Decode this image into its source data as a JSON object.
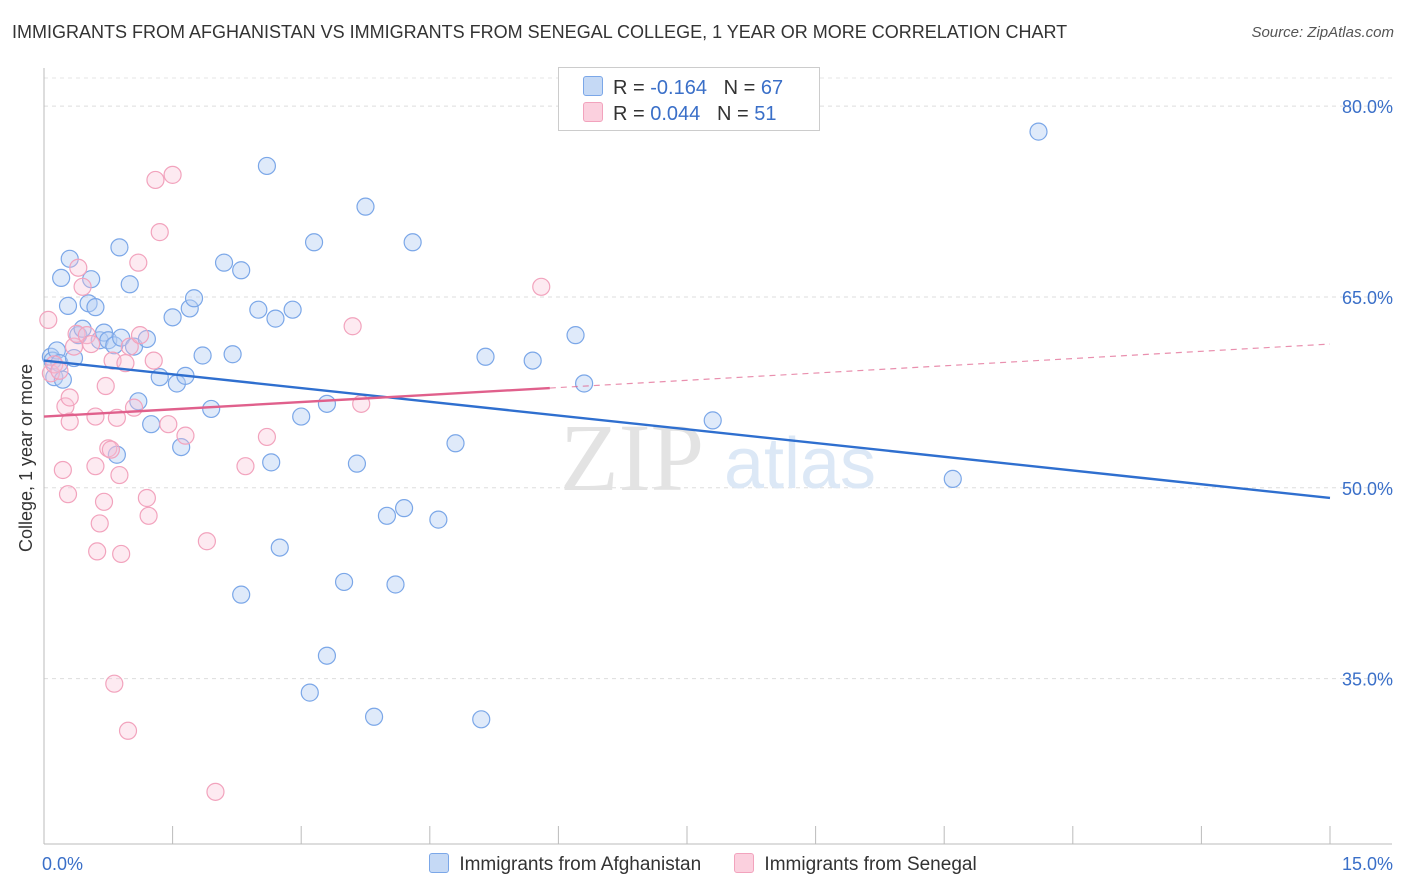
{
  "chart_data": {
    "type": "scatter",
    "title": "IMMIGRANTS FROM AFGHANISTAN VS IMMIGRANTS FROM SENEGAL COLLEGE, 1 YEAR OR MORE CORRELATION CHART",
    "source": "Source: ZipAtlas.com",
    "xlabel": "",
    "ylabel": "College, 1 year or more",
    "xlim": [
      0,
      15
    ],
    "ylim": [
      22,
      83
    ],
    "x_tick_labels": [
      "0.0%",
      "15.0%"
    ],
    "y_ticks": [
      35,
      50,
      65,
      80
    ],
    "y_tick_labels": [
      "35.0%",
      "50.0%",
      "65.0%",
      "80.0%"
    ],
    "watermark": {
      "zip": "ZIP",
      "atlas": "atlas"
    },
    "legend": {
      "r_label": "R =",
      "n_label": "N =",
      "rows": [
        {
          "r": "-0.164",
          "n": "67"
        },
        {
          "r": "0.044",
          "n": "51"
        }
      ]
    },
    "series": [
      {
        "name": "Immigrants from Afghanistan",
        "color": "#7ba7e8",
        "line_color": "#2f6fcf",
        "trend": {
          "x": [
            0,
            15
          ],
          "y": [
            60.0,
            49.2
          ],
          "solid_until": 15
        },
        "points": [
          [
            0.08,
            60.3
          ],
          [
            0.1,
            60.0
          ],
          [
            0.12,
            58.7
          ],
          [
            0.15,
            60.8
          ],
          [
            0.18,
            59.8
          ],
          [
            0.2,
            66.5
          ],
          [
            0.22,
            58.5
          ],
          [
            0.28,
            64.3
          ],
          [
            0.3,
            68.0
          ],
          [
            0.35,
            60.2
          ],
          [
            0.4,
            62.0
          ],
          [
            0.45,
            62.5
          ],
          [
            0.52,
            64.5
          ],
          [
            0.55,
            66.4
          ],
          [
            0.6,
            64.2
          ],
          [
            0.65,
            61.6
          ],
          [
            0.7,
            62.2
          ],
          [
            0.75,
            61.6
          ],
          [
            0.82,
            61.2
          ],
          [
            0.85,
            52.6
          ],
          [
            0.88,
            68.9
          ],
          [
            0.9,
            61.8
          ],
          [
            1.0,
            66.0
          ],
          [
            1.05,
            61.1
          ],
          [
            1.1,
            56.8
          ],
          [
            1.2,
            61.7
          ],
          [
            1.25,
            55.0
          ],
          [
            1.35,
            58.7
          ],
          [
            1.5,
            63.4
          ],
          [
            1.55,
            58.2
          ],
          [
            1.6,
            53.2
          ],
          [
            1.65,
            58.8
          ],
          [
            1.7,
            64.1
          ],
          [
            1.75,
            64.9
          ],
          [
            1.85,
            60.4
          ],
          [
            1.95,
            56.2
          ],
          [
            2.1,
            67.7
          ],
          [
            2.2,
            60.5
          ],
          [
            2.3,
            41.6
          ],
          [
            2.3,
            67.1
          ],
          [
            2.5,
            64.0
          ],
          [
            2.6,
            75.3
          ],
          [
            2.65,
            52.0
          ],
          [
            2.7,
            63.3
          ],
          [
            2.75,
            45.3
          ],
          [
            2.9,
            64.0
          ],
          [
            3.0,
            55.6
          ],
          [
            3.1,
            33.9
          ],
          [
            3.15,
            69.3
          ],
          [
            3.3,
            36.8
          ],
          [
            3.3,
            56.6
          ],
          [
            3.5,
            42.6
          ],
          [
            3.65,
            51.9
          ],
          [
            3.75,
            72.1
          ],
          [
            3.85,
            32.0
          ],
          [
            4.0,
            47.8
          ],
          [
            4.1,
            42.4
          ],
          [
            4.2,
            48.4
          ],
          [
            4.3,
            69.3
          ],
          [
            4.6,
            47.5
          ],
          [
            4.8,
            53.5
          ],
          [
            5.1,
            31.8
          ],
          [
            5.15,
            60.3
          ],
          [
            5.7,
            60.0
          ],
          [
            6.2,
            62.0
          ],
          [
            6.3,
            58.2
          ],
          [
            7.8,
            55.3
          ],
          [
            10.6,
            50.7
          ],
          [
            11.6,
            78.0
          ]
        ]
      },
      {
        "name": "Immigrants from Senegal",
        "color": "#f2a3bd",
        "line_color": "#e0608c",
        "trend": {
          "x": [
            0,
            15
          ],
          "y": [
            55.6,
            61.3
          ],
          "solid_until": 5.9
        },
        "points": [
          [
            0.05,
            63.2
          ],
          [
            0.08,
            59.0
          ],
          [
            0.12,
            59.7
          ],
          [
            0.18,
            59.2
          ],
          [
            0.22,
            51.4
          ],
          [
            0.25,
            56.4
          ],
          [
            0.28,
            49.5
          ],
          [
            0.3,
            57.1
          ],
          [
            0.3,
            55.2
          ],
          [
            0.35,
            61.1
          ],
          [
            0.38,
            62.1
          ],
          [
            0.4,
            67.3
          ],
          [
            0.45,
            65.8
          ],
          [
            0.5,
            62.0
          ],
          [
            0.55,
            61.3
          ],
          [
            0.6,
            51.7
          ],
          [
            0.6,
            55.6
          ],
          [
            0.62,
            45.0
          ],
          [
            0.65,
            47.2
          ],
          [
            0.7,
            48.9
          ],
          [
            0.72,
            58.0
          ],
          [
            0.75,
            53.1
          ],
          [
            0.78,
            53.0
          ],
          [
            0.8,
            60.0
          ],
          [
            0.82,
            34.6
          ],
          [
            0.85,
            55.5
          ],
          [
            0.88,
            51.0
          ],
          [
            0.9,
            44.8
          ],
          [
            0.95,
            59.8
          ],
          [
            0.98,
            30.9
          ],
          [
            1.0,
            61.1
          ],
          [
            1.05,
            56.3
          ],
          [
            1.1,
            67.7
          ],
          [
            1.12,
            62.0
          ],
          [
            1.2,
            49.2
          ],
          [
            1.22,
            47.8
          ],
          [
            1.28,
            60.0
          ],
          [
            1.3,
            74.2
          ],
          [
            1.35,
            70.1
          ],
          [
            1.45,
            55.0
          ],
          [
            1.5,
            74.6
          ],
          [
            1.65,
            54.1
          ],
          [
            1.9,
            45.8
          ],
          [
            2.0,
            26.1
          ],
          [
            2.35,
            51.7
          ],
          [
            2.6,
            54.0
          ],
          [
            3.6,
            62.7
          ],
          [
            3.7,
            56.6
          ],
          [
            5.8,
            65.8
          ]
        ]
      }
    ]
  }
}
